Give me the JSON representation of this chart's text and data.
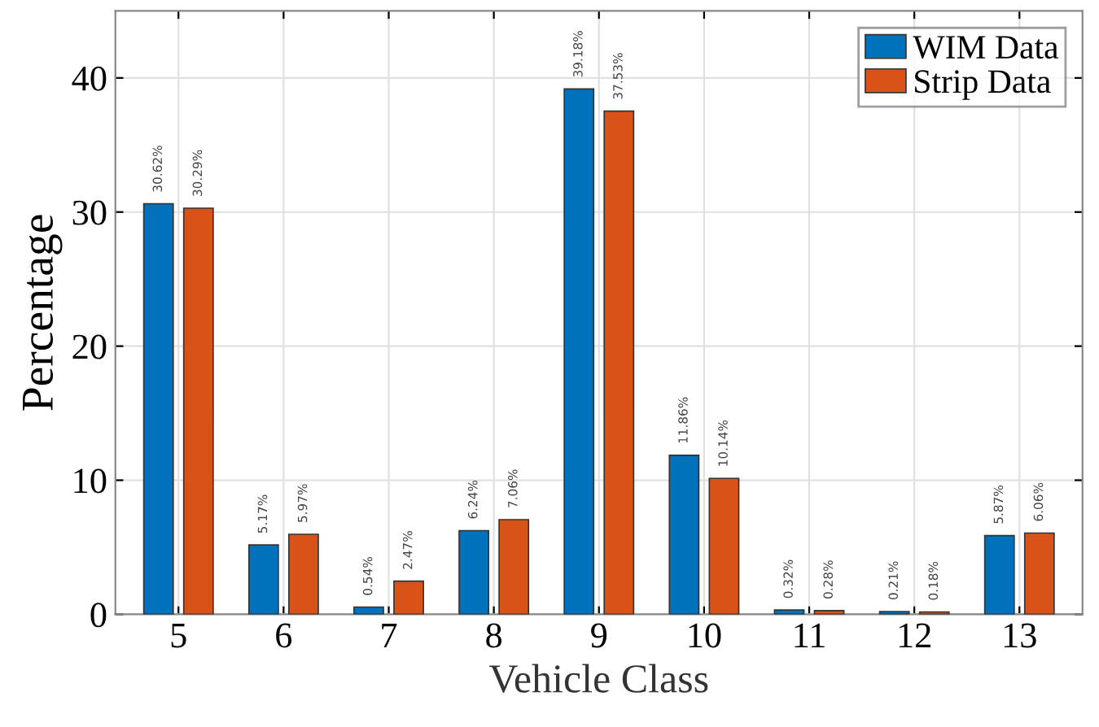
{
  "chart_data": {
    "type": "bar",
    "xlabel": "Vehicle Class",
    "ylabel": "Percentage",
    "categories": [
      "5",
      "6",
      "7",
      "8",
      "9",
      "10",
      "11",
      "12",
      "13"
    ],
    "series": [
      {
        "name": "WIM Data",
        "color": "#0072bd",
        "values": [
          30.62,
          5.17,
          0.54,
          6.24,
          39.18,
          11.86,
          0.32,
          0.21,
          5.87
        ],
        "value_labels": [
          "30.62%",
          "5.17%",
          "0.54%",
          "6.24%",
          "39.18%",
          "11.86%",
          "0.32%",
          "0.21%",
          "5.87%"
        ]
      },
      {
        "name": "Strip Data",
        "color": "#d95319",
        "values": [
          30.29,
          5.97,
          2.47,
          7.06,
          37.53,
          10.14,
          0.28,
          0.18,
          6.06
        ],
        "value_labels": [
          "30.29%",
          "5.97%",
          "2.47%",
          "7.06%",
          "37.53%",
          "10.14%",
          "0.28%",
          "0.18%",
          "6.06%"
        ]
      }
    ],
    "ylim": [
      0,
      45
    ],
    "yticks": [
      0,
      10,
      20,
      30,
      40
    ],
    "grid": true,
    "legend": "top right"
  }
}
